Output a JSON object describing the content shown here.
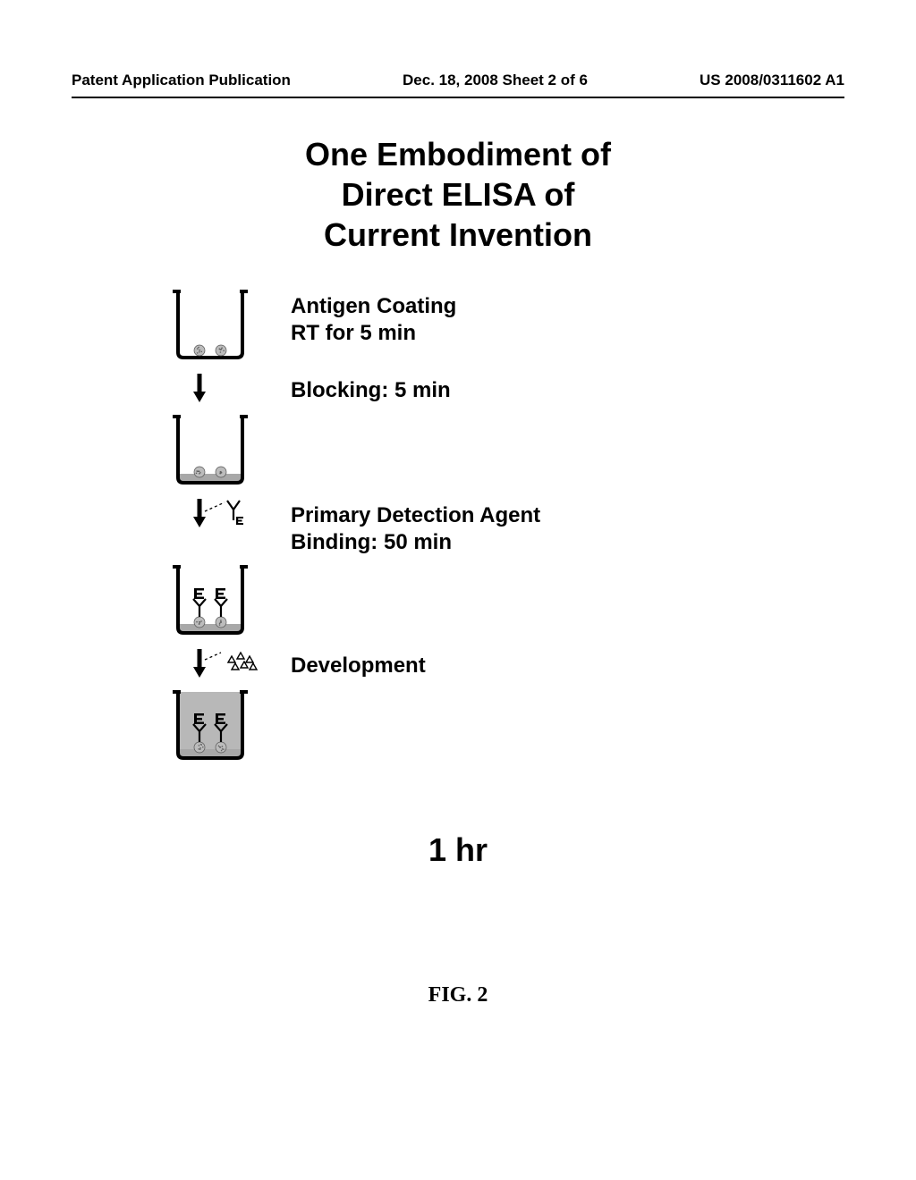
{
  "header": {
    "left": "Patent Application Publication",
    "center": "Dec. 18, 2008  Sheet 2 of 6",
    "right": "US 2008/0311602 A1"
  },
  "title": {
    "line1": "One Embodiment of",
    "line2": "Direct ELISA of",
    "line3": "Current Invention"
  },
  "title_fontsize": 36,
  "steps": [
    {
      "label_line1": "Antigen Coating",
      "label_line2": "RT for 5 min",
      "well_fill": "#ffffff",
      "antigen": true,
      "blocking": false,
      "antibody": false,
      "substrate_filled": false,
      "arrow_after": true,
      "arrow_label": "",
      "arrow_icon": "none"
    },
    {
      "label_line1": "Blocking: 5 min",
      "label_line2": "",
      "well_fill": "#ffffff",
      "antigen": true,
      "blocking": true,
      "antibody": false,
      "substrate_filled": false,
      "arrow_after": true,
      "arrow_label": "",
      "arrow_icon": "antibody",
      "label_for_arrow_line1": "Primary Detection Agent",
      "label_for_arrow_line2": "Binding: 50 min"
    },
    {
      "label_line1": "",
      "label_line2": "",
      "well_fill": "#ffffff",
      "antigen": true,
      "blocking": true,
      "antibody": true,
      "substrate_filled": false,
      "arrow_after": true,
      "arrow_label": "",
      "arrow_icon": "substrate",
      "label_for_arrow_line1": "Development",
      "label_for_arrow_line2": ""
    },
    {
      "label_line1": "",
      "label_line2": "",
      "well_fill": "#b8b8b8",
      "antigen": true,
      "blocking": true,
      "antibody": true,
      "substrate_filled": true,
      "arrow_after": false
    }
  ],
  "total_time": "1 hr",
  "figure_label": "FIG. 2",
  "colors": {
    "background": "#ffffff",
    "text": "#000000",
    "well_stroke": "#000000",
    "well_stroke_width": 4,
    "blocking_fill": "#a8a8a8",
    "antigen_dot": "#bcbcbc",
    "antigen_dot_pattern": "#606060",
    "antibody_stroke": "#000000",
    "enzyme_fill": "#000000",
    "substrate_stroke": "#000000",
    "arrow_fill": "#000000",
    "dashed_line": "#000000",
    "dev_fill": "#b8b8b8"
  }
}
